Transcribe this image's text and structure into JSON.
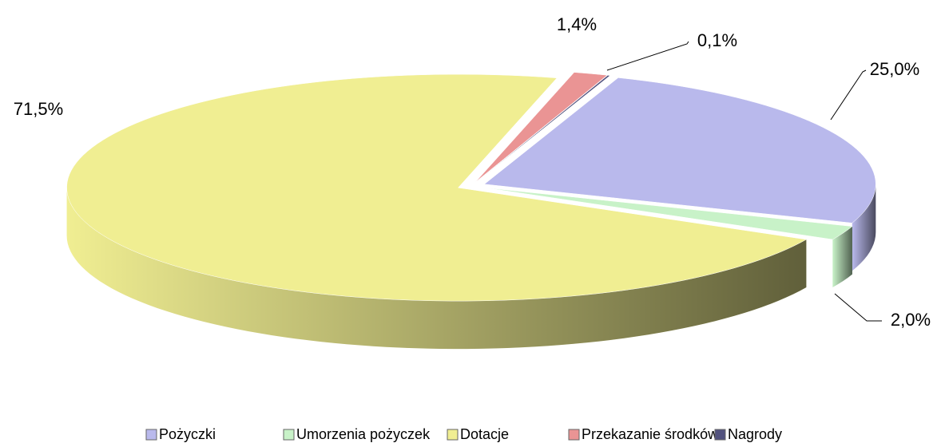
{
  "chart_data": {
    "type": "pie",
    "categories": [
      "Pożyczki",
      "Umorzenia pożyczek",
      "Dotacje",
      "Przekazanie środków",
      "Nagrody"
    ],
    "values": [
      25.0,
      2.0,
      71.5,
      1.4,
      0.1
    ],
    "value_labels": [
      "25,0%",
      "2,0%",
      "71,5%",
      "1,4%",
      "0,1%"
    ],
    "colors": [
      "#b9b9ec",
      "#c8f2c8",
      "#f0ee92",
      "#ea9494",
      "#52527e"
    ],
    "legend": "bottom"
  }
}
